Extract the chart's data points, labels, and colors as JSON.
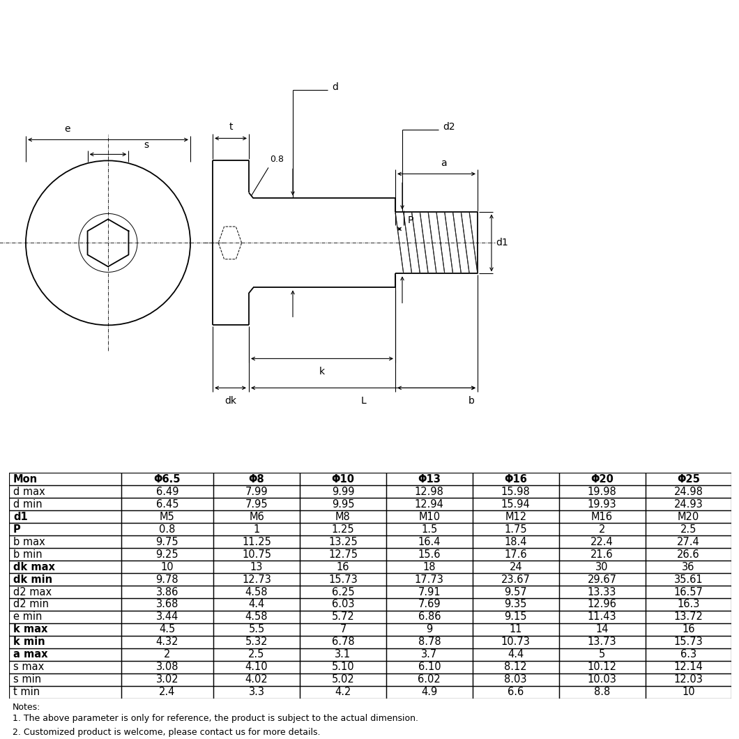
{
  "table_headers": [
    "Mon",
    "Φ6.5",
    "Φ8",
    "Φ10",
    "Φ13",
    "Φ16",
    "Φ20",
    "Φ25"
  ],
  "table_rows": [
    [
      "d max",
      "6.49",
      "7.99",
      "9.99",
      "12.98",
      "15.98",
      "19.98",
      "24.98"
    ],
    [
      "d min",
      "6.45",
      "7.95",
      "9.95",
      "12.94",
      "15.94",
      "19.93",
      "24.93"
    ],
    [
      "d1",
      "M5",
      "M6",
      "M8",
      "M10",
      "M12",
      "M16",
      "M20"
    ],
    [
      "P",
      "0.8",
      "1",
      "1.25",
      "1.5",
      "1.75",
      "2",
      "2.5"
    ],
    [
      "b max",
      "9.75",
      "11.25",
      "13.25",
      "16.4",
      "18.4",
      "22.4",
      "27.4"
    ],
    [
      "b min",
      "9.25",
      "10.75",
      "12.75",
      "15.6",
      "17.6",
      "21.6",
      "26.6"
    ],
    [
      "dk max",
      "10",
      "13",
      "16",
      "18",
      "24",
      "30",
      "36"
    ],
    [
      "dk min",
      "9.78",
      "12.73",
      "15.73",
      "17.73",
      "23.67",
      "29.67",
      "35.61"
    ],
    [
      "d2 max",
      "3.86",
      "4.58",
      "6.25",
      "7.91",
      "9.57",
      "13.33",
      "16.57"
    ],
    [
      "d2 min",
      "3.68",
      "4.4",
      "6.03",
      "7.69",
      "9.35",
      "12.96",
      "16.3"
    ],
    [
      "e min",
      "3.44",
      "4.58",
      "5.72",
      "6.86",
      "9.15",
      "11.43",
      "13.72"
    ],
    [
      "k max",
      "4.5",
      "5.5",
      "7",
      "9",
      "11",
      "14",
      "16"
    ],
    [
      "k min",
      "4.32",
      "5.32",
      "6.78",
      "8.78",
      "10.73",
      "13.73",
      "15.73"
    ],
    [
      "a max",
      "2",
      "2.5",
      "3.1",
      "3.7",
      "4.4",
      "5",
      "6.3"
    ],
    [
      "s max",
      "3.08",
      "4.10",
      "5.10",
      "6.10",
      "8.12",
      "10.12",
      "12.14"
    ],
    [
      "s min",
      "3.02",
      "4.02",
      "5.02",
      "6.02",
      "8.03",
      "10.03",
      "12.03"
    ],
    [
      "t min",
      "2.4",
      "3.3",
      "4.2",
      "4.9",
      "6.6",
      "8.8",
      "10"
    ]
  ],
  "notes": [
    "Notes:",
    "1. The above parameter is only for reference, the product is subject to the actual dimension.",
    "2. Customized product is welcome, please contact us for more details."
  ],
  "bold_col0": [
    "Mon",
    "d1",
    "P",
    "dk max",
    "dk min",
    "k max",
    "k min",
    "a max"
  ]
}
